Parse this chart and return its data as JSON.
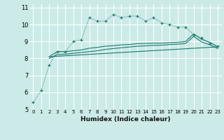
{
  "xlabel": "Humidex (Indice chaleur)",
  "background_color": "#cceae7",
  "grid_color": "#ffffff",
  "line_color": "#1a7a6e",
  "xlim": [
    -0.5,
    23.5
  ],
  "ylim": [
    5,
    11.2
  ],
  "yticks": [
    5,
    6,
    7,
    8,
    9,
    10,
    11
  ],
  "xticks": [
    0,
    1,
    2,
    3,
    4,
    5,
    6,
    7,
    8,
    9,
    10,
    11,
    12,
    13,
    14,
    15,
    16,
    17,
    18,
    19,
    20,
    21,
    22,
    23
  ],
  "series1_x": [
    0,
    1,
    2,
    3,
    4,
    5,
    6,
    7,
    8,
    9,
    10,
    11,
    12,
    13,
    14,
    15,
    16,
    17,
    18,
    19,
    20,
    21,
    22,
    23
  ],
  "series1_y": [
    5.4,
    6.1,
    7.6,
    8.4,
    8.4,
    9.0,
    9.1,
    10.4,
    10.2,
    10.2,
    10.6,
    10.4,
    10.5,
    10.5,
    10.2,
    10.4,
    10.1,
    10.0,
    9.85,
    9.85,
    9.4,
    9.2,
    8.9,
    8.7
  ],
  "series2_x": [
    2,
    3,
    4,
    5,
    6,
    7,
    8,
    9,
    10,
    11,
    12,
    13,
    14,
    15,
    16,
    17,
    18,
    19,
    20,
    21,
    22,
    23
  ],
  "series2_y": [
    8.1,
    8.4,
    8.4,
    8.45,
    8.5,
    8.6,
    8.65,
    8.72,
    8.75,
    8.8,
    8.82,
    8.87,
    8.88,
    8.9,
    8.9,
    8.93,
    8.95,
    9.0,
    9.45,
    9.12,
    8.95,
    8.68
  ],
  "series3_x": [
    2,
    3,
    4,
    5,
    6,
    7,
    8,
    9,
    10,
    11,
    12,
    13,
    14,
    15,
    16,
    17,
    18,
    19,
    20,
    21,
    22,
    23
  ],
  "series3_y": [
    8.0,
    8.22,
    8.25,
    8.3,
    8.35,
    8.4,
    8.45,
    8.53,
    8.58,
    8.63,
    8.67,
    8.72,
    8.74,
    8.77,
    8.78,
    8.82,
    8.84,
    8.88,
    9.3,
    8.97,
    8.8,
    8.58
  ],
  "series4_x": [
    2,
    23
  ],
  "series4_y": [
    8.1,
    8.68
  ]
}
